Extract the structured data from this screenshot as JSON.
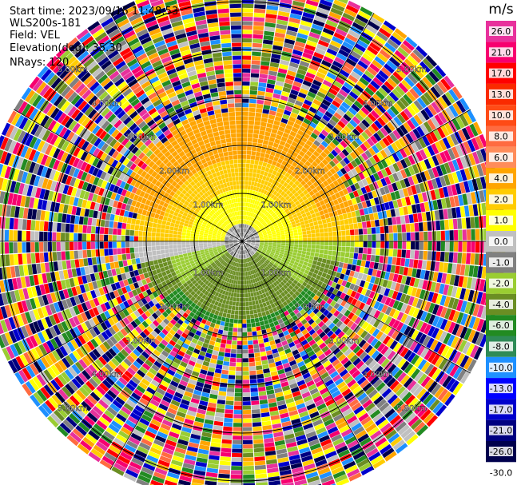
{
  "info": {
    "start_time": "Start time: 2023/09/16 11:48:53",
    "instrument": "WLS200s-181",
    "field": "Field: VEL",
    "elevation": "Elevation(deg): 35.30",
    "nrays": "NRays: 120"
  },
  "colorbar": {
    "unit": "m/s",
    "ticks": [
      "26.0",
      "21.0",
      "17.0",
      "13.0",
      "10.0",
      "8.0",
      "6.0",
      "4.0",
      "2.0",
      "1.0",
      "0.0",
      "-1.0",
      "-2.0",
      "-4.0",
      "-6.0",
      "-8.0",
      "-10.0",
      "-13.0",
      "-17.0",
      "-21.0",
      "-26.0",
      "-30.0"
    ],
    "colors": [
      "#e8319c",
      "#f7006f",
      "#ff0000",
      "#fa2a00",
      "#ff4b16",
      "#ff6b40",
      "#ff8c5a",
      "#ffa500",
      "#ffcc00",
      "#ffff00",
      "#c0c0c0",
      "#808080",
      "#9acd32",
      "#6b8e23",
      "#228b22",
      "#2e8b57",
      "#1e90ff",
      "#0000ff",
      "#0000cd",
      "#000080",
      "#00004d"
    ]
  },
  "chart_data": {
    "type": "heatmap",
    "title": "",
    "field": "VEL",
    "units": "m/s",
    "n_rays": 120,
    "range_rings_km": [
      {
        "range": 1.0,
        "label": "1.00km"
      },
      {
        "range": 2.0,
        "label": "2.00km"
      },
      {
        "range": 3.0,
        "label": "3.00km"
      },
      {
        "range": 4.0,
        "label": "4.00km"
      },
      {
        "range": 5.0,
        "label": "5.00km"
      }
    ],
    "azimuth_lines_deg": [
      0,
      30,
      60,
      90,
      120,
      150,
      180,
      210,
      240,
      270,
      300,
      330
    ],
    "max_range_km": 5.5,
    "color_range": [
      -30,
      26
    ]
  }
}
